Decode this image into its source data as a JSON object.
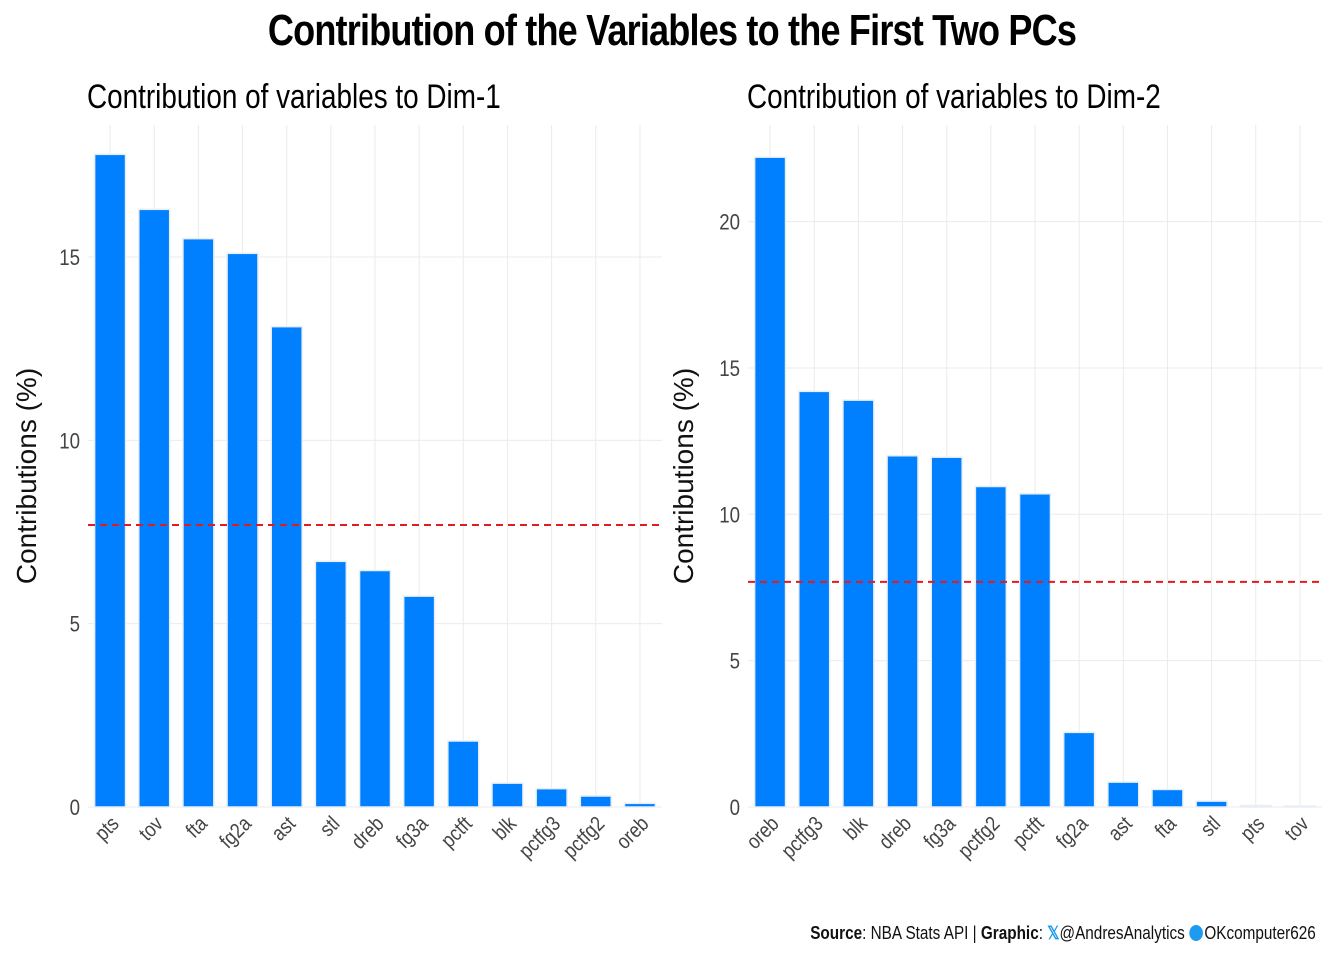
{
  "title": "Contribution of the Variables to the First Two PCs",
  "caption": {
    "source_label": "Source",
    "source_text": ": NBA  Stats API | ",
    "graphic_label": "Graphic",
    "graphic_text": ": ",
    "twitter_icon": "x-icon",
    "twitter_handle": "@AndresAnalytics",
    "github_icon": "github-icon",
    "github_handle": "OKcomputer626"
  },
  "colors": {
    "bar": "#0080FF",
    "reference_line": "#E41A1C",
    "grid": "#EBEBEB"
  },
  "chart_data": [
    {
      "type": "bar",
      "title": "Contribution of variables to Dim-1",
      "xlabel": "",
      "ylabel": "Contributions (%)",
      "categories": [
        "pts",
        "tov",
        "fta",
        "fg2a",
        "ast",
        "stl",
        "dreb",
        "fg3a",
        "pctft",
        "blk",
        "pctfg3",
        "pctfg2",
        "oreb"
      ],
      "values": [
        17.8,
        16.3,
        15.5,
        15.1,
        13.1,
        6.7,
        6.45,
        5.75,
        1.8,
        0.65,
        0.5,
        0.3,
        0.1
      ],
      "ylim": [
        0,
        18.6
      ],
      "yticks": [
        0,
        5,
        10,
        15
      ],
      "reference_line": 7.69,
      "grid": true
    },
    {
      "type": "bar",
      "title": "Contribution of variables to Dim-2",
      "xlabel": "",
      "ylabel": "Contributions (%)",
      "categories": [
        "oreb",
        "pctfg3",
        "blk",
        "dreb",
        "fg3a",
        "pctfg2",
        "pctft",
        "fg2a",
        "ast",
        "fta",
        "stl",
        "pts",
        "tov"
      ],
      "values": [
        22.2,
        14.2,
        13.9,
        12.0,
        11.95,
        10.95,
        10.7,
        2.55,
        0.85,
        0.6,
        0.2,
        0.05,
        0.03
      ],
      "ylim": [
        0,
        23.3
      ],
      "yticks": [
        0,
        5,
        10,
        15,
        20
      ],
      "reference_line": 7.69,
      "grid": true
    }
  ]
}
